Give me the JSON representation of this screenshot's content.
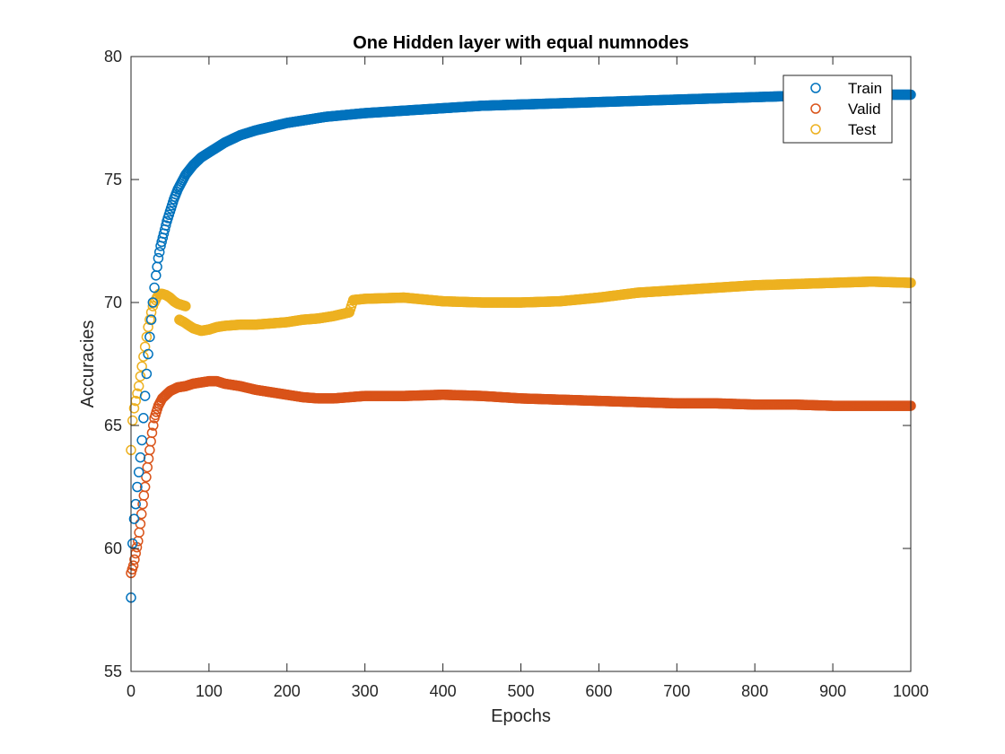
{
  "chart_data": {
    "type": "scatter",
    "title": "One Hidden layer with equal numnodes",
    "xlabel": "Epochs",
    "ylabel": "Accuracies",
    "xlim": [
      0,
      1000
    ],
    "ylim": [
      55,
      80
    ],
    "xticks": [
      "0",
      "100",
      "200",
      "300",
      "400",
      "500",
      "600",
      "700",
      "800",
      "900",
      "1000"
    ],
    "yticks": [
      "55",
      "60",
      "65",
      "70",
      "75",
      "80"
    ],
    "grid": false,
    "legend_position": "top-right",
    "marker": "open-circle",
    "series": [
      {
        "name": "Train",
        "color": "#0072BD",
        "points": [
          [
            0,
            58.0
          ],
          [
            2,
            60.2
          ],
          [
            4,
            61.2
          ],
          [
            6,
            61.8
          ],
          [
            8,
            62.5
          ],
          [
            10,
            63.1
          ],
          [
            12,
            63.7
          ],
          [
            14,
            64.4
          ],
          [
            16,
            65.3
          ],
          [
            18,
            66.2
          ],
          [
            20,
            67.1
          ],
          [
            22,
            67.9
          ],
          [
            24,
            68.6
          ],
          [
            26,
            69.3
          ],
          [
            28,
            70.0
          ],
          [
            30,
            70.6
          ],
          [
            32,
            71.1
          ],
          [
            35,
            71.8
          ],
          [
            38,
            72.3
          ],
          [
            42,
            72.8
          ],
          [
            46,
            73.3
          ],
          [
            50,
            73.7
          ],
          [
            55,
            74.2
          ],
          [
            60,
            74.6
          ],
          [
            70,
            75.2
          ],
          [
            80,
            75.6
          ],
          [
            90,
            75.9
          ],
          [
            100,
            76.1
          ],
          [
            120,
            76.5
          ],
          [
            140,
            76.8
          ],
          [
            160,
            77.0
          ],
          [
            180,
            77.15
          ],
          [
            200,
            77.3
          ],
          [
            250,
            77.55
          ],
          [
            300,
            77.7
          ],
          [
            350,
            77.8
          ],
          [
            400,
            77.9
          ],
          [
            450,
            78.0
          ],
          [
            500,
            78.05
          ],
          [
            550,
            78.1
          ],
          [
            600,
            78.15
          ],
          [
            650,
            78.2
          ],
          [
            700,
            78.25
          ],
          [
            750,
            78.3
          ],
          [
            800,
            78.35
          ],
          [
            850,
            78.4
          ],
          [
            900,
            78.42
          ],
          [
            950,
            78.45
          ],
          [
            1000,
            78.45
          ]
        ]
      },
      {
        "name": "Valid",
        "color": "#D95319",
        "points": [
          [
            0,
            59.0
          ],
          [
            3,
            59.3
          ],
          [
            6,
            59.8
          ],
          [
            9,
            60.3
          ],
          [
            12,
            61.0
          ],
          [
            15,
            61.8
          ],
          [
            18,
            62.5
          ],
          [
            21,
            63.3
          ],
          [
            24,
            64.0
          ],
          [
            27,
            64.7
          ],
          [
            30,
            65.3
          ],
          [
            35,
            65.8
          ],
          [
            40,
            66.1
          ],
          [
            50,
            66.4
          ],
          [
            60,
            66.55
          ],
          [
            70,
            66.6
          ],
          [
            80,
            66.7
          ],
          [
            90,
            66.75
          ],
          [
            100,
            66.8
          ],
          [
            110,
            66.8
          ],
          [
            120,
            66.7
          ],
          [
            140,
            66.6
          ],
          [
            160,
            66.45
          ],
          [
            180,
            66.35
          ],
          [
            200,
            66.25
          ],
          [
            220,
            66.15
          ],
          [
            240,
            66.1
          ],
          [
            260,
            66.1
          ],
          [
            280,
            66.15
          ],
          [
            300,
            66.2
          ],
          [
            350,
            66.2
          ],
          [
            400,
            66.25
          ],
          [
            450,
            66.2
          ],
          [
            500,
            66.1
          ],
          [
            550,
            66.05
          ],
          [
            600,
            66.0
          ],
          [
            650,
            65.95
          ],
          [
            700,
            65.9
          ],
          [
            750,
            65.9
          ],
          [
            800,
            65.85
          ],
          [
            850,
            65.85
          ],
          [
            900,
            65.8
          ],
          [
            950,
            65.8
          ],
          [
            1000,
            65.8
          ]
        ]
      },
      {
        "name": "Test",
        "color": "#EDB120",
        "points": [
          [
            0,
            64.0
          ],
          [
            2,
            65.2
          ],
          [
            4,
            65.7
          ],
          [
            6,
            66.0
          ],
          [
            8,
            66.3
          ],
          [
            10,
            66.6
          ],
          [
            12,
            67.0
          ],
          [
            14,
            67.4
          ],
          [
            16,
            67.8
          ],
          [
            18,
            68.2
          ],
          [
            20,
            68.6
          ],
          [
            22,
            69.0
          ],
          [
            24,
            69.3
          ],
          [
            26,
            69.6
          ],
          [
            28,
            69.85
          ],
          [
            30,
            70.0
          ],
          [
            33,
            70.2
          ],
          [
            36,
            70.35
          ],
          [
            40,
            70.35
          ],
          [
            45,
            70.3
          ],
          [
            50,
            70.2
          ],
          [
            55,
            70.05
          ],
          [
            60,
            69.95
          ],
          [
            65,
            69.9
          ],
          [
            70,
            69.85
          ],
          [
            62,
            69.3
          ],
          [
            68,
            69.2
          ],
          [
            75,
            69.05
          ],
          [
            80,
            68.95
          ],
          [
            90,
            68.85
          ],
          [
            100,
            68.9
          ],
          [
            110,
            69.0
          ],
          [
            120,
            69.05
          ],
          [
            140,
            69.1
          ],
          [
            160,
            69.1
          ],
          [
            180,
            69.15
          ],
          [
            200,
            69.2
          ],
          [
            220,
            69.3
          ],
          [
            240,
            69.35
          ],
          [
            260,
            69.45
          ],
          [
            280,
            69.6
          ],
          [
            285,
            70.1
          ],
          [
            300,
            70.15
          ],
          [
            350,
            70.2
          ],
          [
            400,
            70.05
          ],
          [
            450,
            70.0
          ],
          [
            500,
            70.0
          ],
          [
            550,
            70.05
          ],
          [
            600,
            70.2
          ],
          [
            650,
            70.4
          ],
          [
            700,
            70.5
          ],
          [
            750,
            70.6
          ],
          [
            800,
            70.7
          ],
          [
            850,
            70.75
          ],
          [
            900,
            70.8
          ],
          [
            950,
            70.85
          ],
          [
            1000,
            70.8
          ]
        ]
      }
    ]
  }
}
